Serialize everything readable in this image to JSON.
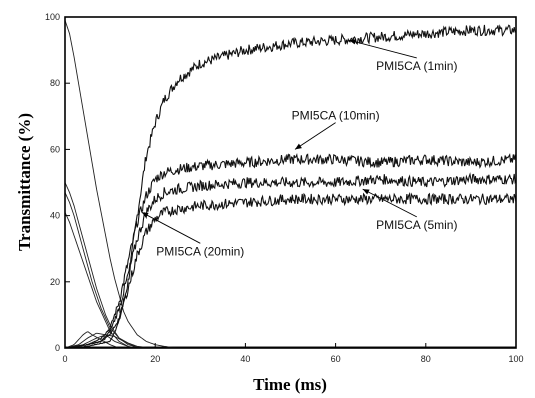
{
  "chart_data": {
    "type": "line",
    "title": "",
    "xlabel": "Time (ms)",
    "ylabel": "Transmittance (%)",
    "xlim": [
      0,
      100
    ],
    "ylim": [
      0,
      100
    ],
    "x_ticks": [
      "0",
      "20",
      "40",
      "60",
      "80",
      "100"
    ],
    "y_ticks": [
      "0",
      "20",
      "40",
      "60",
      "80",
      "100"
    ],
    "grid": false,
    "legend": "none",
    "series": [
      {
        "name": "PMI5CA (1min)",
        "x": [
          0,
          5,
          10,
          12,
          14,
          16,
          18,
          20,
          22,
          25,
          30,
          35,
          40,
          50,
          60,
          70,
          80,
          90,
          100
        ],
        "y": [
          0,
          0.5,
          2,
          8,
          20,
          40,
          58,
          68,
          75,
          81,
          86,
          88,
          90,
          92,
          93,
          94,
          95,
          96,
          96
        ],
        "decay_x": [
          0,
          1,
          2,
          3,
          4,
          5,
          6,
          7,
          8,
          9,
          10,
          11,
          12,
          13,
          14,
          16,
          18,
          20,
          22,
          25
        ],
        "decay_y": [
          99,
          95,
          88,
          80,
          72,
          64,
          56,
          48,
          41,
          34,
          27,
          21,
          16,
          11,
          8,
          4,
          2,
          1,
          0.5,
          0
        ],
        "annotation": {
          "label": "PMI5CA (1min)",
          "target": [
            63,
            93
          ],
          "label_at": [
            78,
            84
          ]
        }
      },
      {
        "name": "PMI5CA (10min)",
        "x": [
          0,
          5,
          8,
          10,
          12,
          14,
          16,
          18,
          20,
          22,
          25,
          30,
          40,
          50,
          60,
          70,
          80,
          90,
          100
        ],
        "y": [
          0,
          1,
          3,
          6,
          14,
          26,
          38,
          46,
          51,
          53,
          54,
          55,
          56,
          57,
          57,
          56,
          57,
          56,
          57
        ],
        "decay_x": [
          0,
          1,
          2,
          3,
          4,
          5,
          6,
          7,
          8,
          9,
          10,
          12,
          14,
          16,
          18,
          20
        ],
        "decay_y": [
          50,
          47,
          43,
          38,
          33,
          28,
          23,
          18,
          14,
          10,
          7,
          3,
          1.5,
          0.5,
          0.2,
          0
        ],
        "annotation": {
          "label": "PMI5CA (10min)",
          "target": [
            51,
            60
          ],
          "label_at": [
            60,
            69
          ]
        }
      },
      {
        "name": "PMI5CA (5min)",
        "x": [
          0,
          5,
          8,
          10,
          12,
          14,
          16,
          18,
          20,
          22,
          25,
          30,
          40,
          50,
          60,
          70,
          80,
          90,
          100
        ],
        "y": [
          0,
          1,
          2,
          5,
          12,
          22,
          33,
          41,
          45,
          47,
          48,
          49,
          50,
          50,
          50,
          51,
          50,
          51,
          51
        ],
        "decay_x": [
          0,
          1,
          2,
          3,
          4,
          5,
          6,
          7,
          8,
          9,
          10,
          12,
          14,
          16,
          18
        ],
        "decay_y": [
          47,
          44,
          40,
          35,
          30,
          25,
          20,
          16,
          12,
          9,
          6,
          3,
          1,
          0.3,
          0
        ],
        "annotation": {
          "label": "PMI5CA (5min)",
          "target": [
            66,
            48
          ],
          "label_at": [
            78,
            36
          ]
        }
      },
      {
        "name": "PMI5CA (20min)",
        "x": [
          0,
          5,
          8,
          10,
          12,
          14,
          16,
          18,
          20,
          22,
          25,
          30,
          40,
          50,
          60,
          70,
          80,
          90,
          100
        ],
        "y": [
          0,
          1,
          2,
          4,
          9,
          18,
          28,
          35,
          39,
          41,
          42,
          43,
          44,
          45,
          45,
          45,
          45,
          45,
          45
        ],
        "decay_x": [
          0,
          1,
          2,
          3,
          4,
          5,
          6,
          7,
          8,
          9,
          10,
          12,
          14,
          16
        ],
        "decay_y": [
          41,
          38,
          34,
          30,
          26,
          22,
          18,
          14,
          11,
          8,
          5,
          2,
          0.5,
          0
        ],
        "annotation": {
          "label": "PMI5CA (20min)",
          "target": [
            17,
            41
          ],
          "label_at": [
            30,
            28
          ]
        }
      }
    ],
    "pulses": [
      {
        "x": [
          0,
          2,
          4,
          5,
          6,
          8,
          10,
          12
        ],
        "y": [
          0,
          1,
          4,
          5,
          4,
          2.5,
          1,
          0
        ]
      },
      {
        "x": [
          0,
          3,
          5,
          7,
          9,
          11,
          13,
          15
        ],
        "y": [
          0,
          1,
          3,
          4.5,
          4,
          2,
          1,
          0
        ]
      },
      {
        "x": [
          0,
          4,
          7,
          9,
          11,
          13,
          15,
          17
        ],
        "y": [
          0,
          1,
          3,
          4,
          3.5,
          2,
          0.8,
          0
        ]
      }
    ]
  }
}
